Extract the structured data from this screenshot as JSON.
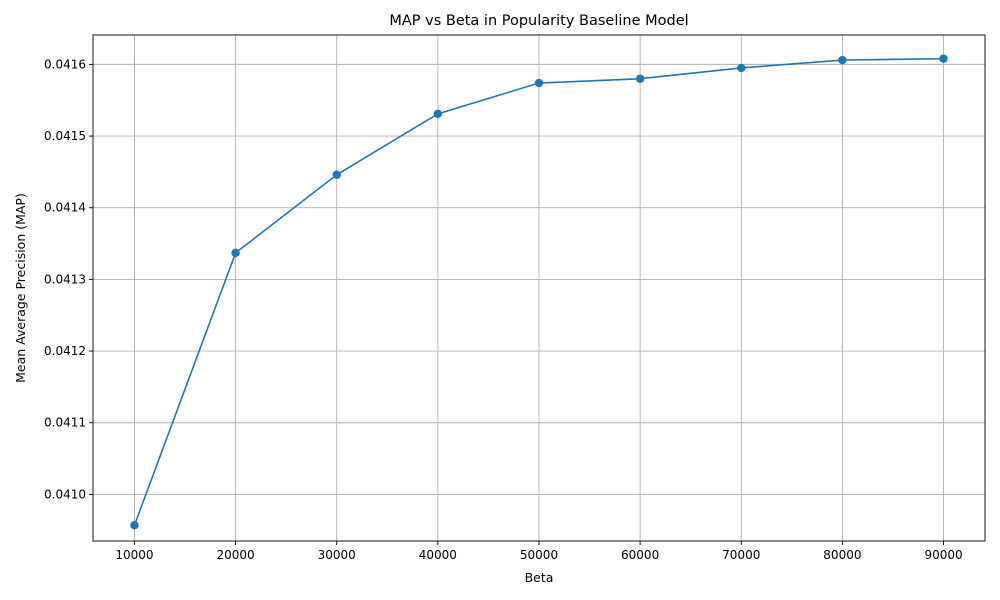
{
  "chart_data": {
    "type": "line",
    "title": "MAP vs Beta in Popularity Baseline Model",
    "xlabel": "Beta",
    "ylabel": "Mean Average Precision (MAP)",
    "x": [
      10000,
      20000,
      30000,
      40000,
      50000,
      60000,
      70000,
      80000,
      90000
    ],
    "series": [
      {
        "values": [
          0.040957,
          0.041337,
          0.041446,
          0.041531,
          0.041574,
          0.04158,
          0.041595,
          0.041606,
          0.041608
        ],
        "color": "#1f77b4",
        "marker": "circle"
      }
    ],
    "xlim": [
      5900,
      94100
    ],
    "ylim": [
      0.040935,
      0.041641
    ],
    "xticks": [
      10000,
      20000,
      30000,
      40000,
      50000,
      60000,
      70000,
      80000,
      90000
    ],
    "xtick_labels": [
      "10000",
      "20000",
      "30000",
      "40000",
      "50000",
      "60000",
      "70000",
      "80000",
      "90000"
    ],
    "yticks": [
      0.041,
      0.0411,
      0.0412,
      0.0413,
      0.0414,
      0.0415,
      0.0416
    ],
    "ytick_labels": [
      "0.0410",
      "0.0411",
      "0.0412",
      "0.0413",
      "0.0414",
      "0.0415",
      "0.0416"
    ],
    "grid": true,
    "legend": "none"
  }
}
